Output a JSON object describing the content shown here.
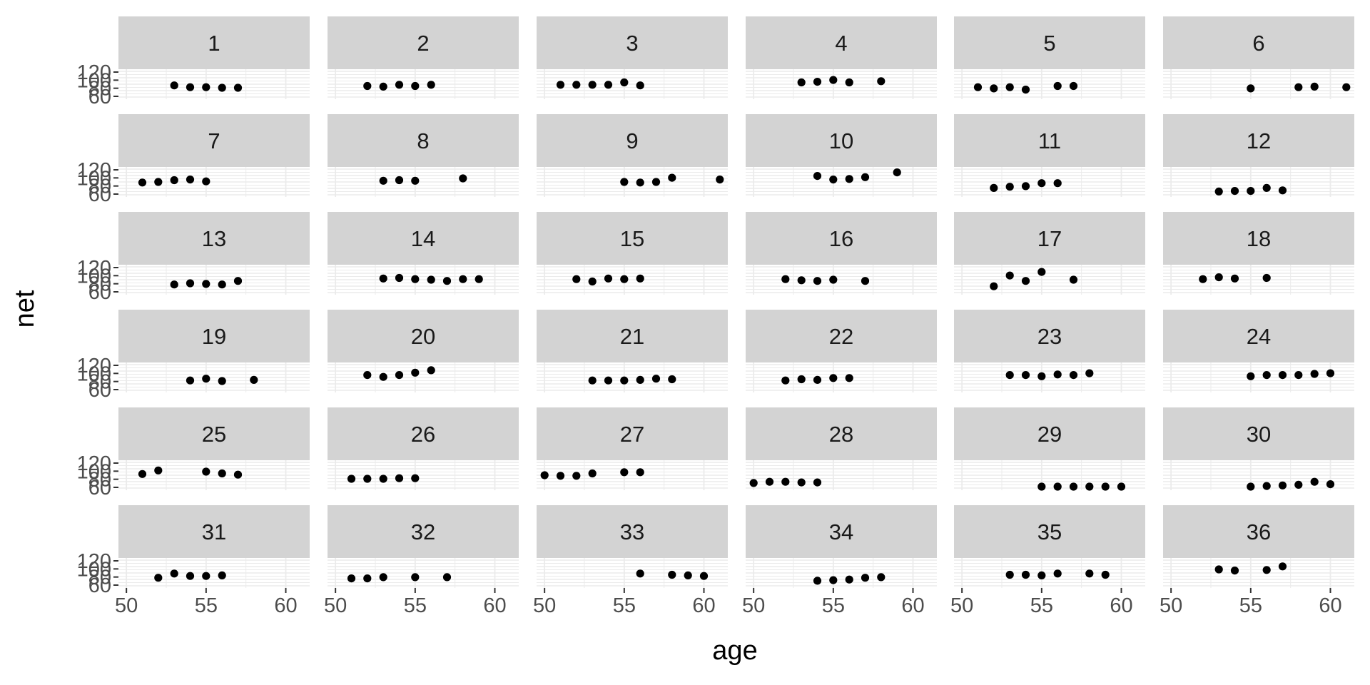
{
  "chart_data": {
    "type": "scatter",
    "facet_type": "wrap",
    "xlabel": "age",
    "ylabel": "net",
    "xlim": [
      49.5,
      61.5
    ],
    "ylim": [
      75,
      125
    ],
    "x_ticks": [
      50,
      55,
      60
    ],
    "y_ticks": [
      60,
      80,
      100,
      120
    ],
    "y_tick_labels": [
      "60",
      "80",
      "100",
      "120"
    ],
    "x_tick_labels": [
      "50",
      "55",
      "60"
    ],
    "panel_background": "#ffffff",
    "grid_color": "#ebebeb",
    "strip_color": "#d3d3d3",
    "point_color": "#000000",
    "panels": [
      {
        "label": "1",
        "points": [
          [
            53,
            98
          ],
          [
            54,
            95
          ],
          [
            55,
            95
          ],
          [
            56,
            94
          ],
          [
            57,
            94
          ]
        ]
      },
      {
        "label": "2",
        "points": [
          [
            52,
            97
          ],
          [
            53,
            96
          ],
          [
            54,
            99
          ],
          [
            55,
            97
          ],
          [
            56,
            99
          ]
        ]
      },
      {
        "label": "3",
        "points": [
          [
            51,
            99
          ],
          [
            52,
            99
          ],
          [
            53,
            99
          ],
          [
            54,
            99
          ],
          [
            55,
            103
          ],
          [
            56,
            98
          ]
        ]
      },
      {
        "label": "4",
        "points": [
          [
            53,
            103
          ],
          [
            54,
            104
          ],
          [
            55,
            107
          ],
          [
            56,
            103
          ],
          [
            58,
            105
          ]
        ]
      },
      {
        "label": "5",
        "points": [
          [
            51,
            95
          ],
          [
            52,
            93
          ],
          [
            53,
            95
          ],
          [
            54,
            91
          ],
          [
            56,
            97
          ],
          [
            57,
            97
          ]
        ]
      },
      {
        "label": "6",
        "points": [
          [
            55,
            93
          ],
          [
            58,
            95
          ],
          [
            59,
            96
          ],
          [
            61,
            95
          ]
        ]
      },
      {
        "label": "7",
        "points": [
          [
            51,
            99
          ],
          [
            52,
            100
          ],
          [
            53,
            103
          ],
          [
            54,
            104
          ],
          [
            55,
            101
          ]
        ]
      },
      {
        "label": "8",
        "points": [
          [
            53,
            102
          ],
          [
            54,
            103
          ],
          [
            55,
            102
          ],
          [
            58,
            106
          ]
        ]
      },
      {
        "label": "9",
        "points": [
          [
            55,
            100
          ],
          [
            56,
            99
          ],
          [
            57,
            100
          ],
          [
            58,
            107
          ],
          [
            61,
            104
          ]
        ]
      },
      {
        "label": "10",
        "points": [
          [
            54,
            110
          ],
          [
            55,
            104
          ],
          [
            56,
            105
          ],
          [
            57,
            108
          ],
          [
            59,
            116
          ]
        ]
      },
      {
        "label": "11",
        "points": [
          [
            52,
            90
          ],
          [
            53,
            92
          ],
          [
            54,
            93
          ],
          [
            55,
            98
          ],
          [
            56,
            98
          ]
        ]
      },
      {
        "label": "12",
        "points": [
          [
            53,
            84
          ],
          [
            54,
            85
          ],
          [
            55,
            85
          ],
          [
            56,
            90
          ],
          [
            57,
            86
          ]
        ]
      },
      {
        "label": "13",
        "points": [
          [
            53,
            92
          ],
          [
            54,
            94
          ],
          [
            55,
            93
          ],
          [
            56,
            92
          ],
          [
            57,
            98
          ]
        ]
      },
      {
        "label": "14",
        "points": [
          [
            53,
            102
          ],
          [
            54,
            103
          ],
          [
            55,
            101
          ],
          [
            56,
            100
          ],
          [
            57,
            98
          ],
          [
            58,
            101
          ],
          [
            59,
            101
          ]
        ]
      },
      {
        "label": "15",
        "points": [
          [
            52,
            101
          ],
          [
            53,
            97
          ],
          [
            54,
            102
          ],
          [
            55,
            101
          ],
          [
            56,
            102
          ]
        ]
      },
      {
        "label": "16",
        "points": [
          [
            52,
            101
          ],
          [
            53,
            99
          ],
          [
            54,
            98
          ],
          [
            55,
            100
          ],
          [
            57,
            98
          ]
        ]
      },
      {
        "label": "17",
        "points": [
          [
            52,
            89
          ],
          [
            53,
            107
          ],
          [
            54,
            98
          ],
          [
            55,
            113
          ],
          [
            57,
            100
          ]
        ]
      },
      {
        "label": "18",
        "points": [
          [
            52,
            101
          ],
          [
            53,
            104
          ],
          [
            54,
            102
          ],
          [
            56,
            103
          ]
        ]
      },
      {
        "label": "19",
        "points": [
          [
            54,
            95
          ],
          [
            55,
            98
          ],
          [
            56,
            94
          ],
          [
            58,
            96
          ]
        ]
      },
      {
        "label": "20",
        "points": [
          [
            52,
            104
          ],
          [
            53,
            101
          ],
          [
            54,
            104
          ],
          [
            55,
            108
          ],
          [
            56,
            112
          ]
        ]
      },
      {
        "label": "21",
        "points": [
          [
            53,
            95
          ],
          [
            54,
            95
          ],
          [
            55,
            95
          ],
          [
            56,
            96
          ],
          [
            57,
            98
          ],
          [
            58,
            97
          ]
        ]
      },
      {
        "label": "22",
        "points": [
          [
            52,
            95
          ],
          [
            53,
            97
          ],
          [
            54,
            96
          ],
          [
            55,
            99
          ],
          [
            56,
            99
          ]
        ]
      },
      {
        "label": "23",
        "points": [
          [
            53,
            104
          ],
          [
            54,
            104
          ],
          [
            55,
            102
          ],
          [
            56,
            105
          ],
          [
            57,
            104
          ],
          [
            58,
            107
          ]
        ]
      },
      {
        "label": "24",
        "points": [
          [
            55,
            102
          ],
          [
            56,
            104
          ],
          [
            57,
            104
          ],
          [
            58,
            104
          ],
          [
            59,
            106
          ],
          [
            60,
            107
          ]
        ]
      },
      {
        "label": "25",
        "points": [
          [
            51,
            102
          ],
          [
            52,
            108
          ],
          [
            55,
            106
          ],
          [
            56,
            103
          ],
          [
            57,
            101
          ]
        ]
      },
      {
        "label": "26",
        "points": [
          [
            51,
            94
          ],
          [
            52,
            94
          ],
          [
            53,
            94
          ],
          [
            54,
            95
          ],
          [
            55,
            95
          ]
        ]
      },
      {
        "label": "27",
        "points": [
          [
            50,
            100
          ],
          [
            51,
            99
          ],
          [
            52,
            99
          ],
          [
            53,
            103
          ],
          [
            55,
            105
          ],
          [
            56,
            105
          ]
        ]
      },
      {
        "label": "28",
        "points": [
          [
            50,
            87
          ],
          [
            51,
            89
          ],
          [
            52,
            89
          ],
          [
            53,
            88
          ],
          [
            54,
            88
          ]
        ]
      },
      {
        "label": "29",
        "points": [
          [
            55,
            81
          ],
          [
            56,
            81
          ],
          [
            57,
            81
          ],
          [
            58,
            81
          ],
          [
            59,
            81
          ],
          [
            60,
            81
          ]
        ]
      },
      {
        "label": "30",
        "points": [
          [
            55,
            81
          ],
          [
            56,
            82
          ],
          [
            57,
            83
          ],
          [
            58,
            84
          ],
          [
            59,
            89
          ],
          [
            60,
            85
          ]
        ]
      },
      {
        "label": "31",
        "points": [
          [
            52,
            92
          ],
          [
            53,
            99
          ],
          [
            54,
            95
          ],
          [
            55,
            95
          ],
          [
            56,
            96
          ]
        ]
      },
      {
        "label": "32",
        "points": [
          [
            51,
            91
          ],
          [
            52,
            91
          ],
          [
            53,
            93
          ],
          [
            55,
            93
          ],
          [
            57,
            93
          ]
        ]
      },
      {
        "label": "33",
        "points": [
          [
            56,
            99
          ],
          [
            58,
            97
          ],
          [
            59,
            96
          ],
          [
            60,
            95
          ]
        ]
      },
      {
        "label": "34",
        "points": [
          [
            54,
            87
          ],
          [
            55,
            88
          ],
          [
            56,
            89
          ],
          [
            57,
            92
          ],
          [
            58,
            93
          ]
        ]
      },
      {
        "label": "35",
        "points": [
          [
            53,
            97
          ],
          [
            54,
            97
          ],
          [
            55,
            96
          ],
          [
            56,
            99
          ],
          [
            58,
            99
          ],
          [
            59,
            97
          ]
        ]
      },
      {
        "label": "36",
        "points": [
          [
            53,
            106
          ],
          [
            54,
            104
          ],
          [
            56,
            105
          ],
          [
            57,
            111
          ]
        ]
      }
    ]
  }
}
